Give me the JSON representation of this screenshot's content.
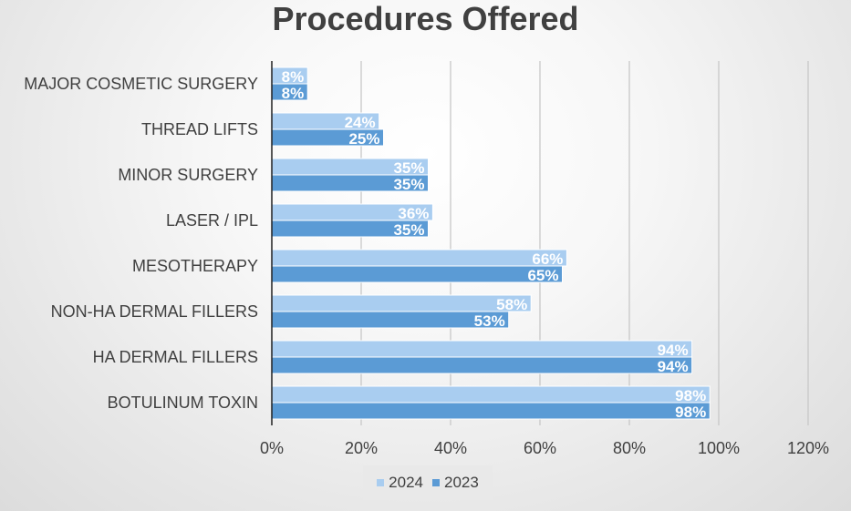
{
  "chart_data": {
    "type": "bar",
    "orientation": "horizontal",
    "title": "Procedures Offered",
    "categories": [
      "MAJOR COSMETIC SURGERY",
      "THREAD LIFTS",
      "MINOR SURGERY",
      "LASER / IPL",
      "MESOTHERAPY",
      "NON-HA DERMAL FILLERS",
      "HA DERMAL FILLERS",
      "BOTULINUM TOXIN"
    ],
    "series": [
      {
        "name": "2024",
        "color": "#a9cdf0",
        "values": [
          8,
          24,
          35,
          36,
          66,
          58,
          94,
          98
        ]
      },
      {
        "name": "2023",
        "color": "#5b9bd5",
        "values": [
          8,
          25,
          35,
          35,
          65,
          53,
          94,
          98
        ]
      }
    ],
    "xlim": [
      0,
      120
    ],
    "xticks": [
      0,
      20,
      40,
      60,
      80,
      100,
      120
    ],
    "tick_suffix": "%",
    "grid": true,
    "legend": "bottom",
    "xlabel": "",
    "ylabel": ""
  }
}
